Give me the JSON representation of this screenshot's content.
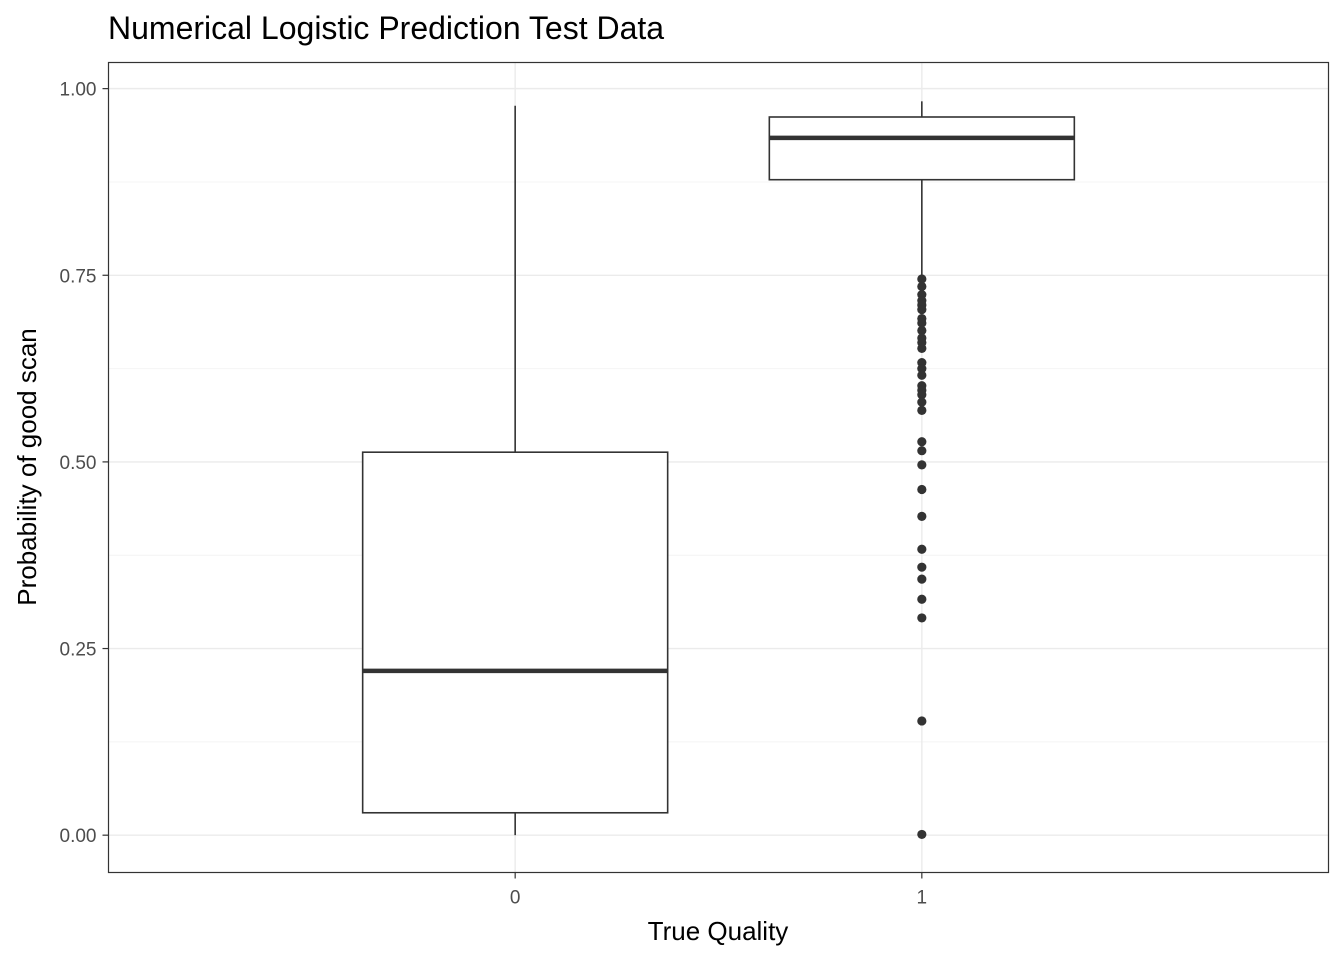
{
  "chart_data": {
    "type": "box",
    "title": "Numerical Logistic Prediction Test Data",
    "xlabel": "True Quality",
    "ylabel": "Probability of good scan",
    "ylim": [
      -0.05,
      1.035
    ],
    "y_ticks": [
      "0.00",
      "0.25",
      "0.50",
      "0.75",
      "1.00"
    ],
    "y_tick_values": [
      0,
      0.25,
      0.5,
      0.75,
      1.0
    ],
    "grid": true,
    "categories": [
      "0",
      "1"
    ],
    "boxes": [
      {
        "category": "0",
        "whisker_low": 0.0,
        "q1": 0.03,
        "median": 0.22,
        "q3": 0.513,
        "whisker_high": 0.977,
        "outliers": []
      },
      {
        "category": "1",
        "whisker_low": 0.748,
        "q1": 0.878,
        "median": 0.934,
        "q3": 0.962,
        "whisker_high": 0.983,
        "outliers": [
          0.745,
          0.735,
          0.724,
          0.716,
          0.71,
          0.704,
          0.692,
          0.686,
          0.676,
          0.666,
          0.66,
          0.652,
          0.633,
          0.625,
          0.616,
          0.602,
          0.596,
          0.59,
          0.58,
          0.569,
          0.527,
          0.515,
          0.496,
          0.463,
          0.427,
          0.383,
          0.359,
          0.343,
          0.316,
          0.291,
          0.153,
          0.001
        ]
      }
    ]
  },
  "colors": {
    "box_stroke": "#333333",
    "grid_major": "#ebebeb",
    "grid_minor": "#f4f4f4",
    "panel_border": "#333333",
    "tick_text": "#4d4d4d"
  }
}
